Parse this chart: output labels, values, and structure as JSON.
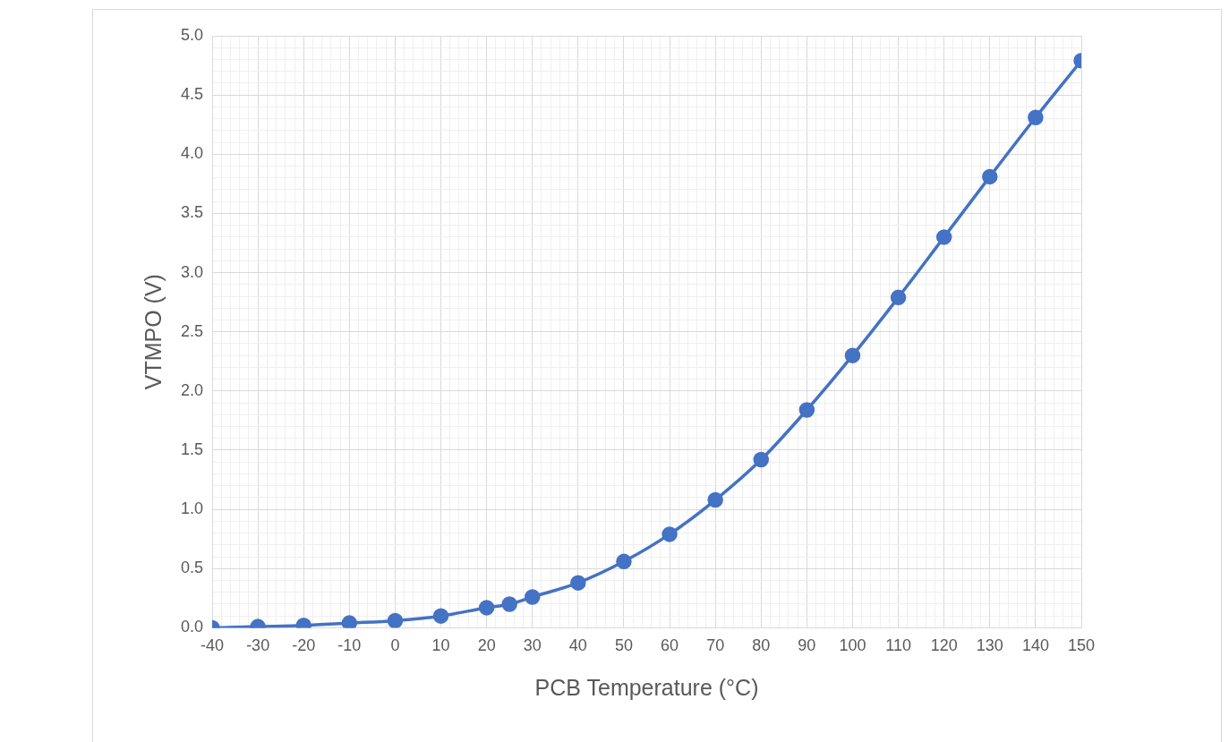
{
  "chart_data": {
    "type": "line",
    "xlabel": "PCB Temperature (°C)",
    "ylabel": "VTMPO (V)",
    "x": [
      -40,
      -30,
      -20,
      -10,
      0,
      10,
      20,
      25,
      30,
      40,
      50,
      60,
      70,
      80,
      90,
      100,
      110,
      120,
      130,
      140,
      150
    ],
    "series": [
      {
        "color": "#4472c4",
        "values": [
          0.0,
          0.01,
          0.02,
          0.04,
          0.06,
          0.1,
          0.17,
          0.2,
          0.26,
          0.38,
          0.56,
          0.79,
          1.08,
          1.42,
          1.84,
          2.3,
          2.79,
          3.3,
          3.81,
          4.31,
          4.79
        ]
      }
    ],
    "xlim": [
      -40,
      150
    ],
    "xticks": [
      -40,
      {
        "value": -38,
        "label": null
      },
      {
        "value": -36,
        "label": null
      },
      {
        "value": -34,
        "label": null
      },
      {
        "value": -32,
        "label": null
      },
      -30,
      {
        "value": -28,
        "label": null
      },
      {
        "value": -26,
        "label": null
      },
      {
        "value": -24,
        "label": null
      },
      {
        "value": -22,
        "label": null
      },
      -20,
      {
        "value": -18,
        "label": null
      },
      {
        "value": -16,
        "label": null
      },
      {
        "value": -14,
        "label": null
      },
      {
        "value": -12,
        "label": null
      },
      -10,
      {
        "value": -8,
        "label": null
      },
      {
        "value": -6,
        "label": null
      },
      {
        "value": -4,
        "label": null
      },
      {
        "value": -2,
        "label": null
      },
      0,
      {
        "value": 2,
        "label": null
      },
      {
        "value": 4,
        "label": null
      },
      {
        "value": 6,
        "label": null
      },
      {
        "value": 8,
        "label": null
      },
      10,
      {
        "value": 12,
        "label": null
      },
      {
        "value": 14,
        "label": null
      },
      {
        "value": 16,
        "label": null
      },
      {
        "value": 18,
        "label": null
      },
      20,
      {
        "value": 22,
        "label": null
      },
      {
        "value": 24,
        "label": null
      },
      {
        "value": 26,
        "label": null
      },
      {
        "value": 28,
        "label": null
      },
      30,
      {
        "value": 32,
        "label": null
      },
      {
        "value": 34,
        "label": null
      },
      {
        "value": 36,
        "label": null
      },
      {
        "value": 38,
        "label": null
      },
      40,
      {
        "value": 42,
        "label": null
      },
      {
        "value": 44,
        "label": null
      },
      {
        "value": 46,
        "label": null
      },
      {
        "value": 48,
        "label": null
      },
      50,
      {
        "value": 52,
        "label": null
      },
      {
        "value": 54,
        "label": null
      },
      {
        "value": 56,
        "label": null
      },
      {
        "value": 58,
        "label": null
      },
      60,
      {
        "value": 62,
        "label": null
      },
      {
        "value": 64,
        "label": null
      },
      {
        "value": 66,
        "label": null
      },
      {
        "value": 68,
        "label": null
      },
      70,
      {
        "value": 72,
        "label": null
      },
      {
        "value": 74,
        "label": null
      },
      {
        "value": 76,
        "label": null
      },
      {
        "value": 78,
        "label": null
      },
      80,
      {
        "value": 82,
        "label": null
      },
      {
        "value": 84,
        "label": null
      },
      {
        "value": 86,
        "label": null
      },
      {
        "value": 88,
        "label": null
      },
      90,
      {
        "value": 92,
        "label": null
      },
      {
        "value": 94,
        "label": null
      },
      {
        "value": 96,
        "label": null
      },
      {
        "value": 98,
        "label": null
      },
      100,
      {
        "value": 102,
        "label": null
      },
      {
        "value": 104,
        "label": null
      },
      {
        "value": 106,
        "label": null
      },
      {
        "value": 108,
        "label": null
      },
      110,
      {
        "value": 112,
        "label": null
      },
      {
        "value": 114,
        "label": null
      },
      {
        "value": 116,
        "label": null
      },
      {
        "value": 118,
        "label": null
      },
      120,
      {
        "value": 122,
        "label": null
      },
      {
        "value": 124,
        "label": null
      },
      {
        "value": 126,
        "label": null
      },
      {
        "value": 128,
        "label": null
      },
      130,
      {
        "value": 132,
        "label": null
      },
      {
        "value": 134,
        "label": null
      },
      {
        "value": 136,
        "label": null
      },
      {
        "value": 138,
        "label": null
      },
      140,
      {
        "value": 142,
        "label": null
      },
      {
        "value": 144,
        "label": null
      },
      {
        "value": 146,
        "label": null
      },
      {
        "value": 148,
        "label": null
      },
      150
    ],
    "ylim": [
      0,
      5
    ],
    "yticks": [
      {
        "value": 0,
        "label": "0.0"
      },
      {
        "value": 0.1,
        "label": null
      },
      {
        "value": 0.2,
        "label": null
      },
      {
        "value": 0.3,
        "label": null
      },
      {
        "value": 0.4,
        "label": null
      },
      {
        "value": 0.5,
        "label": "0.5"
      },
      {
        "value": 0.6,
        "label": null
      },
      {
        "value": 0.7,
        "label": null
      },
      {
        "value": 0.8,
        "label": null
      },
      {
        "value": 0.9,
        "label": null
      },
      {
        "value": 1,
        "label": "1.0"
      },
      {
        "value": 1.1,
        "label": null
      },
      {
        "value": 1.2,
        "label": null
      },
      {
        "value": 1.3,
        "label": null
      },
      {
        "value": 1.4,
        "label": null
      },
      {
        "value": 1.5,
        "label": "1.5"
      },
      {
        "value": 1.6,
        "label": null
      },
      {
        "value": 1.7,
        "label": null
      },
      {
        "value": 1.8,
        "label": null
      },
      {
        "value": 1.9,
        "label": null
      },
      {
        "value": 2,
        "label": "2.0"
      },
      {
        "value": 2.1,
        "label": null
      },
      {
        "value": 2.2,
        "label": null
      },
      {
        "value": 2.3,
        "label": null
      },
      {
        "value": 2.4,
        "label": null
      },
      {
        "value": 2.5,
        "label": "2.5"
      },
      {
        "value": 2.6,
        "label": null
      },
      {
        "value": 2.7,
        "label": null
      },
      {
        "value": 2.8,
        "label": null
      },
      {
        "value": 2.9,
        "label": null
      },
      {
        "value": 3,
        "label": "3.0"
      },
      {
        "value": 3.1,
        "label": null
      },
      {
        "value": 3.2,
        "label": null
      },
      {
        "value": 3.3,
        "label": null
      },
      {
        "value": 3.4,
        "label": null
      },
      {
        "value": 3.5,
        "label": "3.5"
      },
      {
        "value": 3.6,
        "label": null
      },
      {
        "value": 3.7,
        "label": null
      },
      {
        "value": 3.8,
        "label": null
      },
      {
        "value": 3.9,
        "label": null
      },
      {
        "value": 4,
        "label": "4.0"
      },
      {
        "value": 4.1,
        "label": null
      },
      {
        "value": 4.2,
        "label": null
      },
      {
        "value": 4.3,
        "label": null
      },
      {
        "value": 4.4,
        "label": null
      },
      {
        "value": 4.5,
        "label": "4.5"
      },
      {
        "value": 4.6,
        "label": null
      },
      {
        "value": 4.7,
        "label": null
      },
      {
        "value": 4.8,
        "label": null
      },
      {
        "value": 4.9,
        "label": null
      },
      {
        "value": 5,
        "label": "5.0"
      }
    ],
    "grid": true,
    "marker": "circle",
    "line_style": "solid",
    "legend": false
  }
}
